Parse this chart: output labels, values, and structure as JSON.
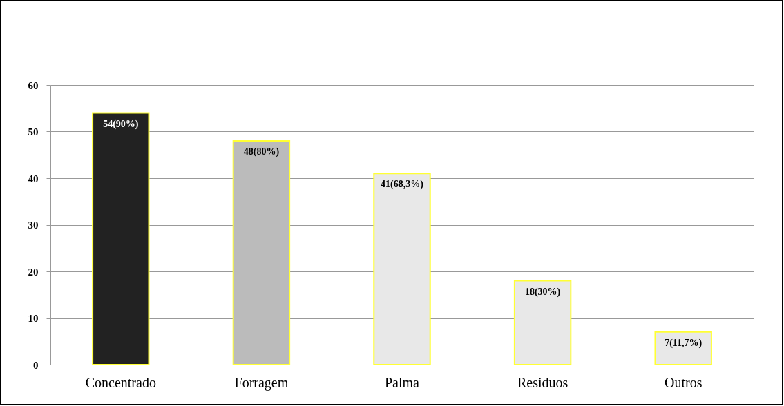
{
  "chart_data": {
    "type": "bar",
    "categories": [
      "Concentrado",
      "Forragem",
      "Palma",
      "Residuos",
      "Outros"
    ],
    "values": [
      54,
      48,
      41,
      18,
      7
    ],
    "colors": [
      "#222222",
      "#bbbbbb",
      "#e8e8e8",
      "#e8e8e8",
      "#e8e8e8"
    ],
    "value_labels": [
      "54(90%)",
      "48(80%)",
      "41(68,3%)",
      "18(30%)",
      "7(11,7%)"
    ],
    "ylim": [
      0,
      60
    ],
    "yticks": [
      0,
      10,
      20,
      30,
      40,
      50,
      60
    ],
    "grid": "y"
  }
}
